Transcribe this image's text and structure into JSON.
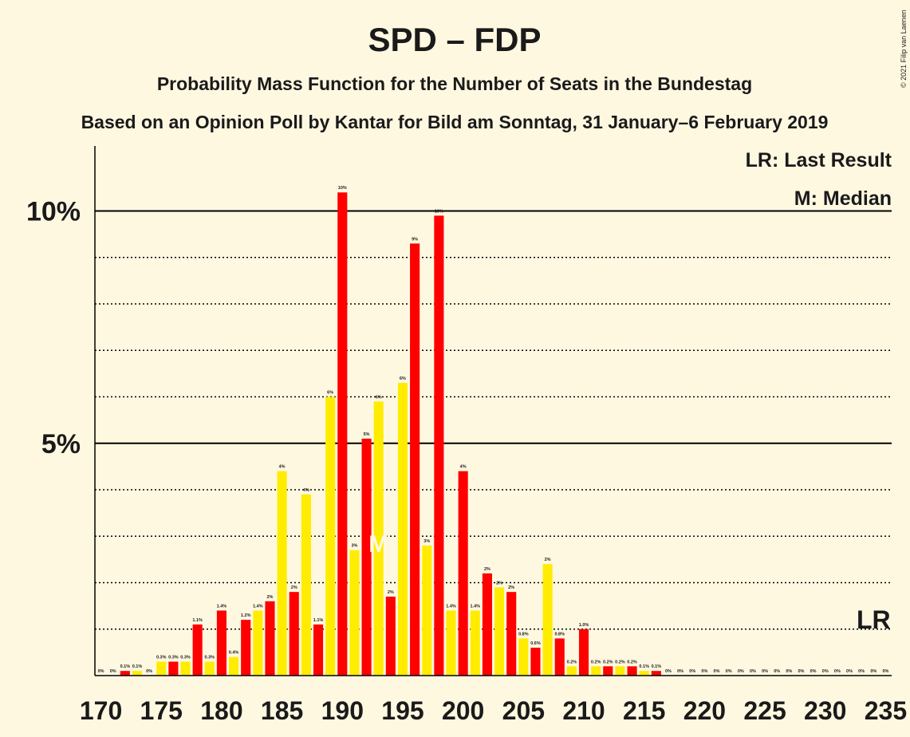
{
  "chart_data": {
    "type": "bar",
    "title": "SPD – FDP",
    "subtitle": "Probability Mass Function for the Number of Seats in the Bundestag",
    "subtitle2": "Based on an Opinion Poll by Kantar for Bild am Sonntag, 31 January–6 February 2019",
    "copyright": "© 2021 Filip van Laenen",
    "legend": [
      "LR: Last Result",
      "M: Median"
    ],
    "x": [
      170,
      171,
      172,
      173,
      174,
      175,
      176,
      177,
      178,
      179,
      180,
      181,
      182,
      183,
      184,
      185,
      186,
      187,
      188,
      189,
      190,
      191,
      192,
      193,
      194,
      195,
      196,
      197,
      198,
      199,
      200,
      201,
      202,
      203,
      204,
      205,
      206,
      207,
      208,
      209,
      210,
      211,
      212,
      213,
      214,
      215,
      216,
      217,
      218,
      219,
      220,
      221,
      222,
      223,
      224,
      225,
      226,
      227,
      228,
      229,
      230,
      231,
      232,
      233,
      234,
      235
    ],
    "values": [
      0,
      0,
      0.1,
      0.1,
      0,
      0.3,
      0.3,
      0.3,
      1.1,
      0.3,
      1.4,
      0.4,
      1.2,
      1.4,
      1.6,
      4.4,
      1.8,
      3.9,
      1.1,
      6.0,
      10.4,
      2.7,
      5.1,
      5.9,
      1.7,
      6.3,
      9.3,
      2.8,
      9.9,
      1.4,
      4.4,
      1.4,
      2.2,
      1.9,
      1.8,
      0.8,
      0.6,
      2.4,
      0.8,
      0.2,
      1.0,
      0.2,
      0.2,
      0.2,
      0.2,
      0.1,
      0.1,
      0,
      0,
      0,
      0,
      0,
      0,
      0,
      0,
      0,
      0,
      0,
      0,
      0,
      0,
      0,
      0,
      0,
      0,
      0
    ],
    "value_labels": [
      "0%",
      "0%",
      "0.1%",
      "0.1%",
      "0%",
      "0.3%",
      "0.3%",
      "0.3%",
      "1.1%",
      "0.3%",
      "1.4%",
      "0.4%",
      "1.2%",
      "1.4%",
      "2%",
      "4%",
      "2%",
      "4%",
      "1.1%",
      "6%",
      "10%",
      "3%",
      "5%",
      "6%",
      "2%",
      "6%",
      "9%",
      "3%",
      "10%",
      "1.4%",
      "4%",
      "1.4%",
      "2%",
      "2%",
      "2%",
      "0.8%",
      "0.6%",
      "2%",
      "0.8%",
      "0.2%",
      "1.0%",
      "0.2%",
      "0.2%",
      "0.2%",
      "0.2%",
      "0.1%",
      "0.1%",
      "0%",
      "0%",
      "0%",
      "0%",
      "0%",
      "0%",
      "0%",
      "0%",
      "0%",
      "0%",
      "0%",
      "0%",
      "0%",
      "0%",
      "0%",
      "0%",
      "0%",
      "0%",
      "0%"
    ],
    "colors": [
      "#ff0000",
      "#ffec00"
    ],
    "xlim": [
      169.5,
      235.5
    ],
    "xticks": [
      170,
      175,
      180,
      185,
      190,
      195,
      200,
      205,
      210,
      215,
      220,
      225,
      230,
      235
    ],
    "ylim": [
      0,
      11.4
    ],
    "yticks": [
      {
        "value": 5,
        "label": "5%"
      },
      {
        "value": 10,
        "label": "10%"
      }
    ],
    "minor_yticks": [
      1,
      2,
      3,
      4,
      6,
      7,
      8,
      9
    ],
    "annotations": [
      {
        "label": "M",
        "x": 193
      },
      {
        "label": "LR",
        "x": 234
      }
    ]
  }
}
